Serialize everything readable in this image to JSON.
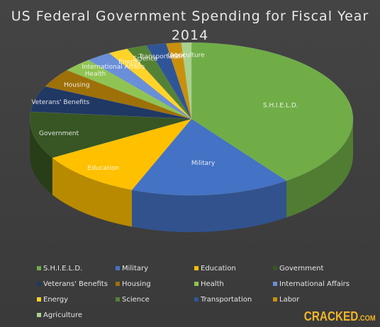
{
  "title": "US Federal Government Spending for Fiscal Year 2014",
  "watermark": {
    "main": "CRACKED",
    "suffix": ".COM"
  },
  "chart_data": {
    "type": "pie",
    "title": "US Federal Government Spending for Fiscal Year 2014",
    "style": "3d",
    "legend_position": "bottom",
    "slices": [
      {
        "label": "S.H.I.E.L.D.",
        "value": 40.0,
        "color": "#70ad47"
      },
      {
        "label": "Military",
        "value": 16.0,
        "color": "#4472c4"
      },
      {
        "label": "Education",
        "value": 10.5,
        "color": "#ffc000"
      },
      {
        "label": "Government",
        "value": 10.0,
        "color": "#375623"
      },
      {
        "label": "Veterans' Benefits",
        "value": 5.5,
        "color": "#203864"
      },
      {
        "label": "Housing",
        "value": 4.0,
        "color": "#9e7008"
      },
      {
        "label": "Health",
        "value": 3.0,
        "color": "#8fc454"
      },
      {
        "label": "International Affairs",
        "value": 2.5,
        "color": "#6a8fd8"
      },
      {
        "label": "Energy",
        "value": 2.0,
        "color": "#ffd32a"
      },
      {
        "label": "Science",
        "value": 2.0,
        "color": "#548235"
      },
      {
        "label": "Transportation",
        "value": 2.0,
        "color": "#2f5597"
      },
      {
        "label": "Labor",
        "value": 1.5,
        "color": "#c9900c"
      },
      {
        "label": "Agriculture",
        "value": 1.0,
        "color": "#a9d18e"
      }
    ]
  }
}
